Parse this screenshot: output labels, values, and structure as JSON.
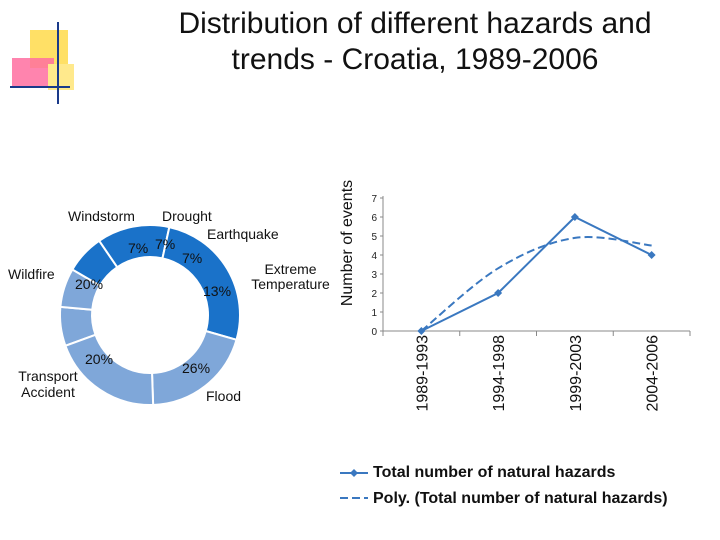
{
  "slide": {
    "title_line1": "Distribution of different hazards and",
    "title_line2": "trends - Croatia, 1989-2006"
  },
  "colors": {
    "donut_light": "#7fa7d9",
    "donut_dark": "#1a72c9",
    "line": "#3a78c0",
    "deco_yellow": "#ffe066",
    "deco_pink": "#ff6fa0",
    "deco_line": "#1a3a8a"
  },
  "chart_data": [
    {
      "type": "pie",
      "variant": "donut",
      "slices": [
        {
          "label": "Windstorm",
          "pct_label": "7%",
          "value": 7
        },
        {
          "label": "Drought",
          "pct_label": "7%",
          "value": 7
        },
        {
          "label": "Earthquake",
          "pct_label": "7%",
          "value": 7
        },
        {
          "label": "Extreme Temperature",
          "pct_label": "13%",
          "value": 13
        },
        {
          "label": "Flood",
          "pct_label": "26%",
          "value": 26
        },
        {
          "label": "Transport Accident",
          "pct_label": "20%",
          "value": 20
        },
        {
          "label": "Wildfire",
          "pct_label": "20%",
          "value": 20
        }
      ]
    },
    {
      "type": "line",
      "ylabel": "Number of events",
      "ylim": [
        0,
        7
      ],
      "yticks": [
        "0",
        "1",
        "2",
        "3",
        "4",
        "5",
        "6",
        "7"
      ],
      "categories": [
        "1989-1993",
        "1994-1998",
        "1999-2003",
        "2004-2006"
      ],
      "series": [
        {
          "name": "Total number of natural hazards",
          "values": [
            0,
            2,
            6,
            4
          ]
        },
        {
          "name": "Poly. (Total number of natural hazards)",
          "values": [
            0,
            3.3,
            4.9,
            4.5
          ],
          "style": "dashed"
        }
      ],
      "legend_placement": "bottom"
    }
  ]
}
